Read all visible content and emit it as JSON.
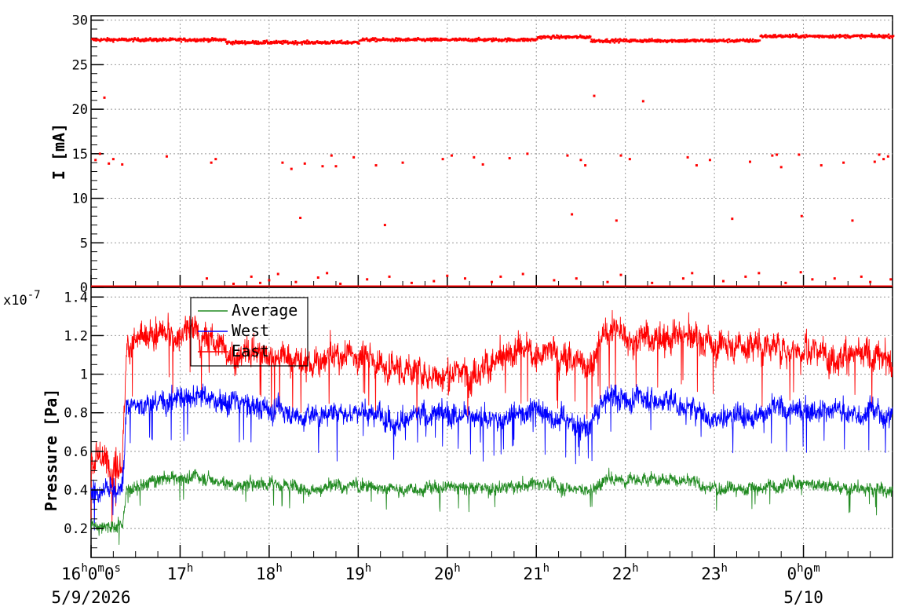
{
  "chart_data": [
    {
      "type": "scatter",
      "ylabel": "I [mA]",
      "ylim": [
        0,
        30.5
      ],
      "yticks": [
        "0",
        "5",
        "10",
        "15",
        "20",
        "25",
        "30"
      ],
      "xlim_hours": [
        16.0,
        25.0
      ],
      "grid": true,
      "series": [
        {
          "color": "#ff0000",
          "base_levels": [
            {
              "from_h": 16.0,
              "to_h": 17.5,
              "value": 27.9
            },
            {
              "from_h": 17.5,
              "to_h": 19.0,
              "value": 27.6
            },
            {
              "from_h": 19.0,
              "to_h": 21.0,
              "value": 27.9
            },
            {
              "from_h": 21.0,
              "to_h": 21.6,
              "value": 28.2
            },
            {
              "from_h": 21.6,
              "to_h": 23.5,
              "value": 27.8
            },
            {
              "from_h": 23.5,
              "to_h": 25.0,
              "value": 28.3
            }
          ],
          "outliers": [
            [
              16.05,
              14.3
            ],
            [
              16.1,
              15.0
            ],
            [
              16.15,
              21.3
            ],
            [
              16.2,
              13.9
            ],
            [
              16.25,
              14.4
            ],
            [
              16.35,
              13.8
            ],
            [
              16.85,
              14.7
            ],
            [
              17.35,
              14.0
            ],
            [
              17.4,
              14.4
            ],
            [
              18.15,
              14.0
            ],
            [
              18.25,
              13.3
            ],
            [
              18.35,
              7.8
            ],
            [
              18.4,
              13.9
            ],
            [
              18.6,
              13.6
            ],
            [
              18.7,
              14.8
            ],
            [
              18.75,
              13.6
            ],
            [
              18.95,
              14.6
            ],
            [
              19.2,
              13.7
            ],
            [
              19.3,
              7.0
            ],
            [
              19.5,
              14.0
            ],
            [
              19.95,
              14.4
            ],
            [
              20.05,
              14.8
            ],
            [
              20.3,
              14.6
            ],
            [
              20.4,
              13.8
            ],
            [
              20.7,
              14.5
            ],
            [
              20.9,
              15.0
            ],
            [
              21.35,
              14.8
            ],
            [
              21.4,
              8.2
            ],
            [
              21.5,
              14.3
            ],
            [
              21.55,
              13.7
            ],
            [
              21.65,
              21.5
            ],
            [
              21.9,
              7.5
            ],
            [
              21.95,
              14.8
            ],
            [
              22.05,
              14.4
            ],
            [
              22.2,
              20.9
            ],
            [
              22.7,
              14.6
            ],
            [
              22.8,
              13.7
            ],
            [
              22.95,
              14.3
            ],
            [
              23.2,
              7.7
            ],
            [
              23.4,
              14.1
            ],
            [
              23.65,
              14.8
            ],
            [
              23.7,
              14.9
            ],
            [
              23.75,
              13.5
            ],
            [
              23.95,
              14.9
            ],
            [
              23.98,
              8.0
            ],
            [
              24.2,
              13.7
            ],
            [
              24.45,
              14.0
            ],
            [
              24.55,
              7.5
            ],
            [
              24.8,
              14.1
            ],
            [
              24.85,
              14.9
            ],
            [
              24.9,
              14.4
            ],
            [
              24.95,
              14.7
            ]
          ],
          "zero_level_points": [
            [
              17.3,
              1.0
            ],
            [
              17.6,
              0.4
            ],
            [
              17.8,
              1.2
            ],
            [
              17.9,
              0.5
            ],
            [
              18.0,
              0.8
            ],
            [
              18.1,
              1.5
            ],
            [
              18.3,
              0.6
            ],
            [
              18.55,
              1.1
            ],
            [
              18.65,
              1.6
            ],
            [
              18.8,
              0.4
            ],
            [
              19.1,
              0.9
            ],
            [
              19.35,
              1.2
            ],
            [
              19.6,
              0.5
            ],
            [
              19.85,
              0.7
            ],
            [
              20.0,
              1.3
            ],
            [
              20.2,
              1.0
            ],
            [
              20.5,
              0.6
            ],
            [
              20.6,
              1.2
            ],
            [
              20.85,
              1.5
            ],
            [
              21.2,
              0.8
            ],
            [
              21.45,
              1.0
            ],
            [
              21.8,
              0.6
            ],
            [
              21.95,
              1.4
            ],
            [
              22.3,
              0.5
            ],
            [
              22.65,
              1.0
            ],
            [
              22.75,
              1.6
            ],
            [
              23.1,
              0.7
            ],
            [
              23.35,
              1.2
            ],
            [
              23.5,
              1.6
            ],
            [
              23.8,
              0.5
            ],
            [
              23.97,
              1.7
            ],
            [
              24.1,
              0.9
            ],
            [
              24.35,
              1.0
            ],
            [
              24.65,
              1.2
            ],
            [
              24.75,
              0.6
            ],
            [
              24.98,
              0.9
            ]
          ]
        }
      ]
    },
    {
      "type": "line",
      "ylabel": "Pressure [Pa]",
      "y_exponent": "x10",
      "y_exponent_power": "-7",
      "ylim": [
        0.05,
        1.45
      ],
      "yticks": [
        "0.2",
        "0.4",
        "0.6",
        "0.8",
        "1",
        "1.2",
        "1.4"
      ],
      "xlim_hours": [
        16.0,
        25.0
      ],
      "grid": true,
      "legend_position": "top-left",
      "series": [
        {
          "name": "Average",
          "color": "#228b22",
          "noise": 0.05,
          "levels": [
            [
              16.0,
              0.22
            ],
            [
              16.35,
              0.21
            ],
            [
              16.4,
              0.4
            ],
            [
              16.8,
              0.46
            ],
            [
              17.2,
              0.47
            ],
            [
              17.6,
              0.43
            ],
            [
              18.0,
              0.44
            ],
            [
              18.5,
              0.41
            ],
            [
              19.0,
              0.43
            ],
            [
              19.5,
              0.4
            ],
            [
              20.0,
              0.42
            ],
            [
              20.5,
              0.4
            ],
            [
              21.0,
              0.44
            ],
            [
              21.6,
              0.4
            ],
            [
              21.8,
              0.46
            ],
            [
              22.5,
              0.46
            ],
            [
              23.0,
              0.41
            ],
            [
              23.5,
              0.41
            ],
            [
              24.0,
              0.44
            ],
            [
              24.5,
              0.4
            ],
            [
              25.0,
              0.4
            ]
          ]
        },
        {
          "name": "West",
          "color": "#0000ff",
          "noise": 0.09,
          "levels": [
            [
              16.0,
              0.4
            ],
            [
              16.35,
              0.4
            ],
            [
              16.4,
              0.84
            ],
            [
              16.8,
              0.86
            ],
            [
              17.2,
              0.9
            ],
            [
              17.6,
              0.85
            ],
            [
              18.0,
              0.82
            ],
            [
              18.5,
              0.78
            ],
            [
              19.0,
              0.82
            ],
            [
              19.5,
              0.76
            ],
            [
              20.0,
              0.8
            ],
            [
              20.5,
              0.76
            ],
            [
              21.0,
              0.82
            ],
            [
              21.6,
              0.72
            ],
            [
              21.8,
              0.9
            ],
            [
              22.5,
              0.86
            ],
            [
              23.0,
              0.78
            ],
            [
              23.5,
              0.8
            ],
            [
              24.0,
              0.82
            ],
            [
              24.5,
              0.8
            ],
            [
              25.0,
              0.8
            ]
          ]
        },
        {
          "name": "East",
          "color": "#ff0000",
          "noise": 0.12,
          "levels": [
            [
              16.0,
              0.55
            ],
            [
              16.35,
              0.55
            ],
            [
              16.4,
              1.14
            ],
            [
              16.8,
              1.2
            ],
            [
              17.2,
              1.22
            ],
            [
              17.6,
              1.1
            ],
            [
              18.0,
              1.12
            ],
            [
              18.5,
              1.05
            ],
            [
              19.0,
              1.1
            ],
            [
              19.5,
              1.02
            ],
            [
              20.0,
              1.0
            ],
            [
              20.5,
              1.05
            ],
            [
              21.0,
              1.12
            ],
            [
              21.6,
              1.05
            ],
            [
              21.8,
              1.22
            ],
            [
              22.5,
              1.2
            ],
            [
              23.0,
              1.15
            ],
            [
              23.5,
              1.15
            ],
            [
              24.0,
              1.12
            ],
            [
              24.5,
              1.1
            ],
            [
              25.0,
              1.05
            ]
          ]
        }
      ]
    }
  ],
  "time_axis": {
    "labels": [
      {
        "h": 16.0,
        "text": "16",
        "sup1": "h",
        "mid1": "0",
        "sup2": "m",
        "mid2": "0",
        "sup3": "s"
      },
      {
        "h": 17.0,
        "text": "17",
        "sup1": "h"
      },
      {
        "h": 18.0,
        "text": "18",
        "sup1": "h"
      },
      {
        "h": 19.0,
        "text": "19",
        "sup1": "h"
      },
      {
        "h": 20.0,
        "text": "20",
        "sup1": "h"
      },
      {
        "h": 21.0,
        "text": "21",
        "sup1": "h"
      },
      {
        "h": 22.0,
        "text": "22",
        "sup1": "h"
      },
      {
        "h": 23.0,
        "text": "23",
        "sup1": "h"
      },
      {
        "h": 24.0,
        "text": "0",
        "sup1": "h",
        "mid1": "0",
        "sup2": "m"
      }
    ],
    "dates": [
      {
        "h": 16.0,
        "text": "5/9/2026"
      },
      {
        "h": 24.0,
        "text": "5/10"
      }
    ]
  }
}
